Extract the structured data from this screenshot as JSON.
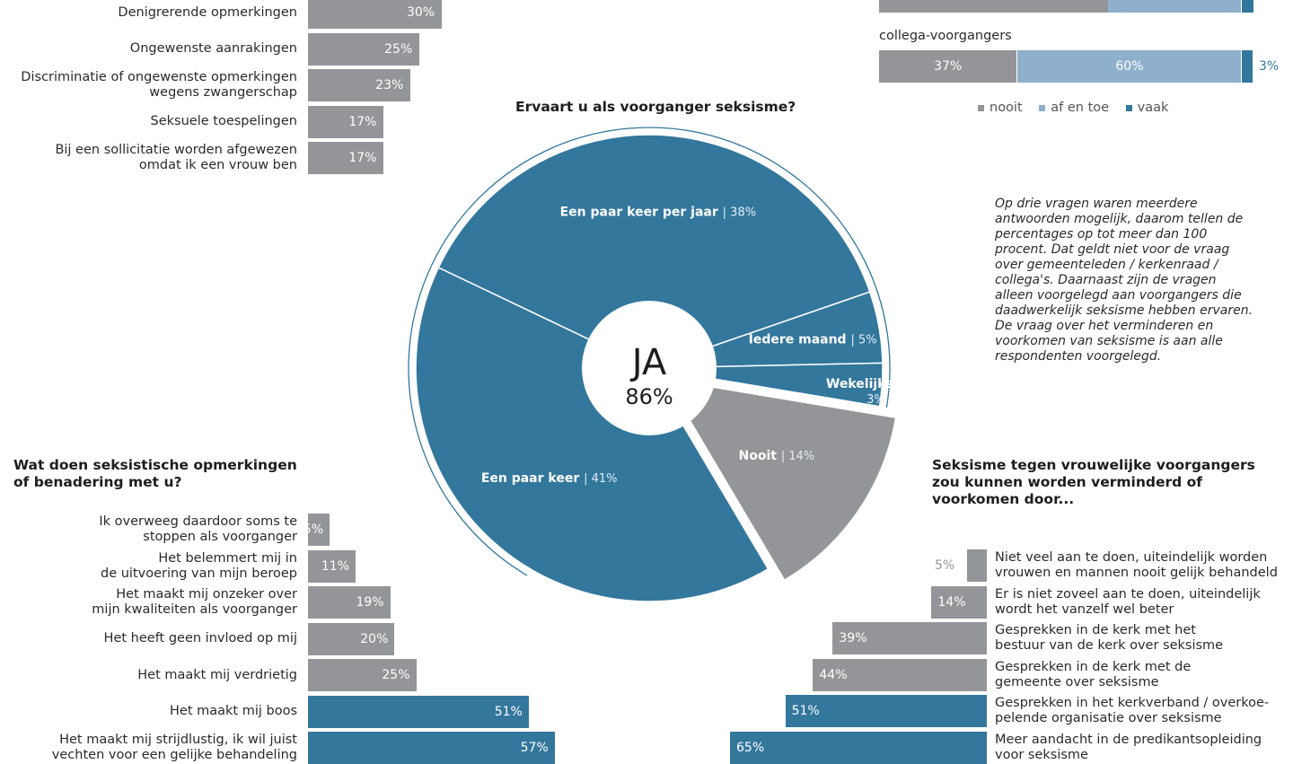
{
  "colors": {
    "grey": "#939598",
    "light_blue": "#8fb0cc",
    "blue": "#33779d"
  },
  "top_left_bars": [
    {
      "label": "Denigrerende opmerkingen",
      "value": 30
    },
    {
      "label": "Ongewenste aanrakingen",
      "value": 25
    },
    {
      "label": "Discriminatie of ongewenste opmerkingen\nwegens zwangerschap",
      "value": 23
    },
    {
      "label": "Seksuele toespelingen",
      "value": 17
    },
    {
      "label": "Bij een sollicitatie worden afgewezen\nomdat ik een vrouw ben",
      "value": 17
    }
  ],
  "top_right": {
    "partial_row": {
      "nooit": "51%",
      "af_en_toe": "38%",
      "vaak": "1%"
    },
    "category": "collega-voorgangers",
    "row": [
      {
        "key": "nooit",
        "value": 37,
        "text": "37%"
      },
      {
        "key": "af en toe",
        "value": 60,
        "text": "60%"
      },
      {
        "key": "vaak",
        "value": 3,
        "text": "3%"
      }
    ],
    "legend": [
      "nooit",
      "af en toe",
      "vaak"
    ]
  },
  "pie": {
    "title": "Ervaart u als voorganger seksisme?",
    "center_big": "JA",
    "center_small": "86%",
    "sep": "|"
  },
  "note": "Op drie vragen waren meerdere antwoorden mogelijk, daarom tellen de percentages op tot meer dan 100 procent. Dat geldt niet voor de vraag over gemeenteleden / kerkenraad / collega's. Daarnaast zijn de vragen alleen voorgelegd aan voorgangers die daadwerkelijk seksisme hebben ervaren. De vraag over het verminderen en voorkomen van seksisme is aan alle respondenten voorgelegd.",
  "bottom_left": {
    "title": "Wat doen seksistische opmerkingen\nof benadering met u?",
    "bars": [
      {
        "label": "Ik overweeg daardoor soms te\nstoppen als voorganger",
        "value": 5,
        "highlight": false
      },
      {
        "label": "Het belemmert mij in\nde uitvoering van mijn beroep",
        "value": 11,
        "highlight": false
      },
      {
        "label": "Het maakt mij onzeker over\nmijn kwaliteiten als voorganger",
        "value": 19,
        "highlight": false
      },
      {
        "label": "Het heeft geen invloed op mij",
        "value": 20,
        "highlight": false
      },
      {
        "label": "Het maakt mij verdrietig",
        "value": 25,
        "highlight": false
      },
      {
        "label": "Het maakt mij boos",
        "value": 51,
        "highlight": true
      },
      {
        "label": "Het maakt mij strijdlustig, ik wil juist\nvechten voor een gelijke behandeling",
        "value": 57,
        "highlight": true
      }
    ]
  },
  "bottom_right": {
    "title": "Seksisme tegen vrouwelijke voorgangers\nzou kunnen worden verminderd of\nvoorkomen door...",
    "bars": [
      {
        "label": "Niet veel aan te doen, uiteindelijk worden\nvrouwen en mannen nooit gelijk behandeld",
        "value": 5,
        "highlight": false
      },
      {
        "label": "Er is niet zoveel aan te doen, uiteindelijk\nwordt het vanzelf wel beter",
        "value": 14,
        "highlight": false
      },
      {
        "label": "Gesprekken in de kerk met het\nbestuur van de kerk over seksisme",
        "value": 39,
        "highlight": false
      },
      {
        "label": "Gesprekken in de kerk met de\ngemeente over seksisme",
        "value": 44,
        "highlight": false
      },
      {
        "label": "Gesprekken in het kerkverband / overkoe-\npelende organisatie over seksisme",
        "value": 51,
        "highlight": true
      },
      {
        "label": "Meer aandacht in de predikantsopleiding\nvoor seksisme",
        "value": 65,
        "highlight": true
      }
    ]
  },
  "chart_data": [
    {
      "type": "bar",
      "orientation": "horizontal",
      "categories": [
        "Denigrerende opmerkingen",
        "Ongewenste aanrakingen",
        "Discriminatie of ongewenste opmerkingen wegens zwangerschap",
        "Seksuele toespelingen",
        "Bij een sollicitatie worden afgewezen omdat ik een vrouw ben"
      ],
      "values": [
        30,
        25,
        23,
        17,
        17
      ],
      "unit": "%"
    },
    {
      "type": "bar",
      "orientation": "horizontal-stacked",
      "categories": [
        "collega-voorgangers"
      ],
      "series": [
        {
          "name": "nooit",
          "values": [
            37
          ]
        },
        {
          "name": "af en toe",
          "values": [
            60
          ]
        },
        {
          "name": "vaak",
          "values": [
            3
          ]
        }
      ],
      "unit": "%"
    },
    {
      "type": "pie",
      "title": "Ervaart u als voorganger seksisme?",
      "labels": [
        "Een paar keer per jaar",
        "Iedere maand",
        "Wekelijks",
        "Nooit",
        "Een paar keer"
      ],
      "values": [
        38,
        5,
        3,
        14,
        41
      ],
      "unit": "%"
    },
    {
      "type": "bar",
      "orientation": "horizontal",
      "title": "Wat doen seksistische opmerkingen of benadering met u?",
      "categories": [
        "Ik overweeg daardoor soms te stoppen als voorganger",
        "Het belemmert mij in de uitvoering van mijn beroep",
        "Het maakt mij onzeker over mijn kwaliteiten als voorganger",
        "Het heeft geen invloed op mij",
        "Het maakt mij verdrietig",
        "Het maakt mij boos",
        "Het maakt mij strijdlustig, ik wil juist vechten voor een gelijke behandeling"
      ],
      "values": [
        5,
        11,
        19,
        20,
        25,
        51,
        57
      ],
      "unit": "%"
    },
    {
      "type": "bar",
      "orientation": "horizontal",
      "title": "Seksisme tegen vrouwelijke voorgangers zou kunnen worden verminderd of voorkomen door...",
      "categories": [
        "Niet veel aan te doen, uiteindelijk worden vrouwen en mannen nooit gelijk behandeld",
        "Er is niet zoveel aan te doen, uiteindelijk wordt het vanzelf wel beter",
        "Gesprekken in de kerk met het bestuur van de kerk over seksisme",
        "Gesprekken in de kerk met de gemeente over seksisme",
        "Gesprekken in het kerkverband / overkoepelende organisatie over seksisme",
        "Meer aandacht in de predikantsopleiding voor seksisme"
      ],
      "values": [
        5,
        14,
        39,
        44,
        51,
        65
      ],
      "unit": "%"
    }
  ]
}
